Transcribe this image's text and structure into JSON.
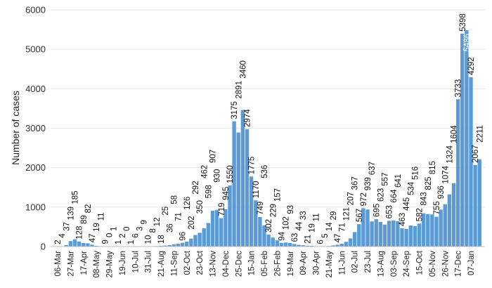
{
  "chart_data": {
    "type": "bar",
    "title": "",
    "xlabel": "",
    "ylabel": "Number of cases",
    "ylim": [
      0,
      6000
    ],
    "y_ticks": [
      0,
      1000,
      2000,
      3000,
      4000,
      5000,
      6000
    ],
    "grid": "horizontal",
    "bar_color": "#5b9bd5",
    "data_labels": true,
    "x_tick_labels": [
      "06-Mar",
      "27-Mar",
      "17-Apr",
      "08-May",
      "29-May",
      "19-Jun",
      "10-Jul",
      "31-Jul",
      "21-Aug",
      "11-Sep",
      "02-Oct",
      "23-Oct",
      "13-Nov",
      "04-Dec",
      "25-Dec",
      "15-Jan",
      "05-Feb",
      "26-Feb",
      "19-Mar",
      "09-Apr",
      "30-Apr",
      "21-May",
      "11-Jun",
      "02-Jul",
      "23-Jul",
      "13-Aug",
      "03-Sep",
      "24-Sep",
      "15-Oct",
      "05-Nov",
      "26-Nov",
      "17-Dec",
      "07-Jan"
    ],
    "values": [
      2,
      4,
      37,
      139,
      185,
      128,
      89,
      82,
      47,
      19,
      11,
      9,
      0,
      1,
      1,
      2,
      0,
      1,
      6,
      3,
      9,
      10,
      8,
      12,
      18,
      25,
      36,
      58,
      71,
      96,
      126,
      202,
      292,
      350,
      462,
      598,
      907,
      930,
      719,
      945,
      1550,
      3175,
      2891,
      3460,
      2974,
      1775,
      1170,
      749,
      536,
      302,
      229,
      157,
      94,
      102,
      93,
      63,
      44,
      33,
      21,
      19,
      11,
      6,
      5,
      14,
      29,
      47,
      71,
      121,
      207,
      367,
      567,
      972,
      939,
      637,
      695,
      623,
      557,
      653,
      664,
      641,
      463,
      445,
      534,
      516,
      582,
      843,
      825,
      815,
      755,
      936,
      1074,
      1324,
      1604,
      3733,
      5398,
      5486,
      4292,
      2067,
      2211
    ]
  }
}
